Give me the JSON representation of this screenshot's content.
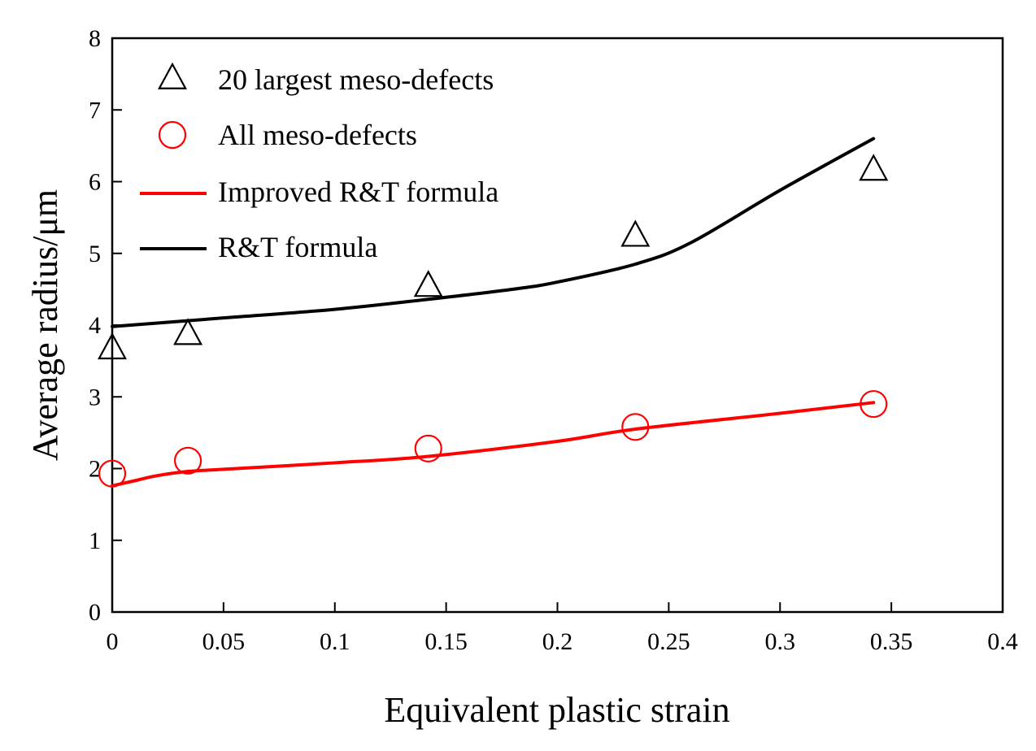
{
  "chart_data": {
    "type": "line",
    "title": "",
    "xlabel": "Equivalent plastic strain",
    "ylabel": "Average radius/μm",
    "xlim": [
      0,
      0.4
    ],
    "ylim": [
      0,
      8
    ],
    "xticks": [
      0,
      0.05,
      0.1,
      0.15,
      0.2,
      0.25,
      0.3,
      0.35,
      0.4
    ],
    "xtick_labels": [
      "0",
      "0.05",
      "0.1",
      "0.15",
      "0.2",
      "0.25",
      "0.3",
      "0.35",
      "0.4"
    ],
    "yticks": [
      0,
      1,
      2,
      3,
      4,
      5,
      6,
      7,
      8
    ],
    "ytick_labels": [
      "0",
      "1",
      "2",
      "3",
      "4",
      "5",
      "6",
      "7",
      "8"
    ],
    "grid": false,
    "legend_position": "top-left",
    "series": [
      {
        "name": "20 largest meso-defects",
        "kind": "scatter",
        "marker": "triangle",
        "color": "#000000",
        "x": [
          0.0,
          0.034,
          0.142,
          0.235,
          0.342
        ],
        "y": [
          3.68,
          3.88,
          4.55,
          5.25,
          6.17
        ]
      },
      {
        "name": "All meso-defects",
        "kind": "scatter",
        "marker": "circle",
        "color": "#ff0000",
        "x": [
          0.0,
          0.034,
          0.142,
          0.235,
          0.342
        ],
        "y": [
          1.93,
          2.11,
          2.28,
          2.58,
          2.9
        ]
      },
      {
        "name": "Improved R&T formula",
        "kind": "line",
        "color": "#ff0000",
        "x": [
          0.0,
          0.01,
          0.02,
          0.034,
          0.05,
          0.1,
          0.142,
          0.2,
          0.235,
          0.3,
          0.342
        ],
        "y": [
          1.76,
          1.83,
          1.9,
          1.96,
          1.99,
          2.08,
          2.17,
          2.38,
          2.55,
          2.77,
          2.92
        ]
      },
      {
        "name": "R&T formula",
        "kind": "line",
        "color": "#000000",
        "x": [
          0.0,
          0.05,
          0.1,
          0.142,
          0.18,
          0.2,
          0.235,
          0.26,
          0.3,
          0.342
        ],
        "y": [
          3.98,
          4.1,
          4.22,
          4.36,
          4.5,
          4.6,
          4.85,
          5.15,
          5.88,
          6.6
        ]
      }
    ]
  }
}
